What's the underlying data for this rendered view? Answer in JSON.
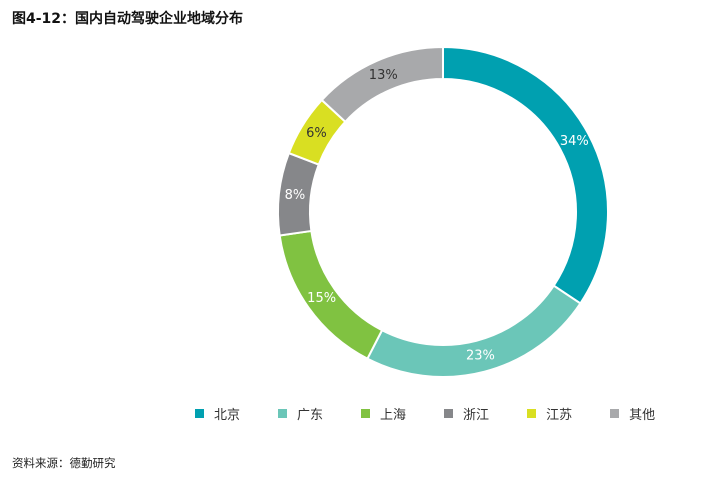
{
  "figure": {
    "title": "图4-12：国内自动驾驶企业地域分布",
    "source": "资料来源：德勤研究"
  },
  "chart_data": {
    "type": "pie",
    "donut": true,
    "legend_position": "bottom",
    "series": [
      {
        "name": "北京",
        "value": 34,
        "label": "34%",
        "color": "#00A0B0",
        "label_color": "#ffffff"
      },
      {
        "name": "广东",
        "value": 23,
        "label": "23%",
        "color": "#6BC6B8",
        "label_color": "#ffffff"
      },
      {
        "name": "上海",
        "value": 15,
        "label": "15%",
        "color": "#80C241",
        "label_color": "#ffffff"
      },
      {
        "name": "浙江",
        "value": 8,
        "label": "8%",
        "color": "#86878A",
        "label_color": "#ffffff"
      },
      {
        "name": "江苏",
        "value": 6,
        "label": "6%",
        "color": "#D9DF22",
        "label_color": "#333333"
      },
      {
        "name": "其他",
        "value": 13,
        "label": "13%",
        "color": "#A8A9AB",
        "label_color": "#333333"
      }
    ]
  }
}
